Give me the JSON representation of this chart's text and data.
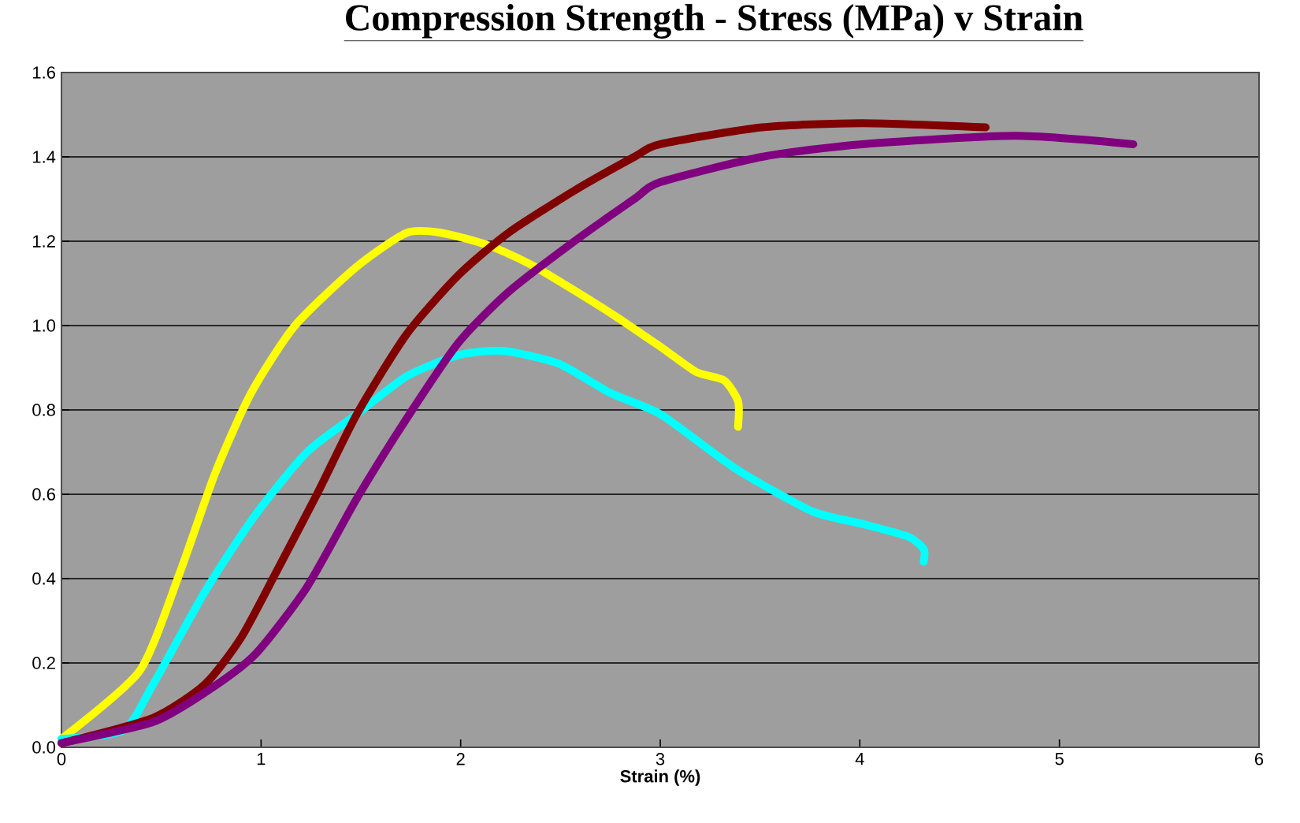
{
  "chart_data": {
    "type": "line",
    "title": "Compression Strength - Stress (MPa) v Strain",
    "xlabel": "Strain (%)",
    "xlim": [
      0,
      6
    ],
    "xticks": [
      0,
      1,
      2,
      3,
      4,
      5,
      6
    ],
    "ylim": [
      0,
      1.6
    ],
    "yticks": [
      {
        "value": 0,
        "label": "0.0"
      },
      0.2,
      0.4,
      0.6,
      0.8,
      {
        "value": 1,
        "label": "1.0"
      },
      1.2,
      1.4,
      1.6
    ],
    "grid": "y",
    "marker": "none",
    "line_style": "solid",
    "series": [
      {
        "color": "#ffff00",
        "x": [
          0,
          0.39,
          0.59,
          0.77,
          0.95,
          1.17,
          1.48,
          1.73,
          1.9,
          2.14,
          2.37,
          2.75,
          3.0,
          3.18,
          3.32,
          3.39,
          3.39
        ],
        "values": [
          0.02,
          0.18,
          0.41,
          0.65,
          0.84,
          1.0,
          1.14,
          1.22,
          1.22,
          1.19,
          1.14,
          1.03,
          0.95,
          0.89,
          0.87,
          0.82,
          0.76
        ]
      },
      {
        "color": "#00ffff",
        "x": [
          0,
          0.31,
          0.46,
          0.72,
          0.97,
          1.23,
          1.48,
          1.73,
          1.99,
          2.21,
          2.49,
          2.75,
          3.0,
          3.38,
          3.76,
          4.01,
          4.24,
          4.32,
          4.32
        ],
        "values": [
          0.02,
          0.04,
          0.15,
          0.37,
          0.55,
          0.7,
          0.79,
          0.88,
          0.93,
          0.94,
          0.91,
          0.84,
          0.79,
          0.66,
          0.56,
          0.53,
          0.5,
          0.47,
          0.44
        ]
      },
      {
        "color": "#800000",
        "x": [
          0,
          0.46,
          0.72,
          0.9,
          1.07,
          1.28,
          1.48,
          1.73,
          1.99,
          2.24,
          2.57,
          2.87,
          3.0,
          3.51,
          4.01,
          4.63
        ],
        "values": [
          0.01,
          0.07,
          0.15,
          0.26,
          0.41,
          0.6,
          0.79,
          0.98,
          1.12,
          1.22,
          1.32,
          1.4,
          1.43,
          1.47,
          1.48,
          1.47
        ]
      },
      {
        "color": "#800080",
        "x": [
          0,
          0.46,
          0.72,
          0.97,
          1.23,
          1.48,
          1.73,
          1.99,
          2.24,
          2.57,
          2.87,
          3.0,
          3.51,
          4.01,
          4.78,
          5.37
        ],
        "values": [
          0.01,
          0.06,
          0.13,
          0.22,
          0.38,
          0.59,
          0.78,
          0.96,
          1.08,
          1.2,
          1.3,
          1.34,
          1.4,
          1.43,
          1.45,
          1.43
        ]
      }
    ]
  }
}
